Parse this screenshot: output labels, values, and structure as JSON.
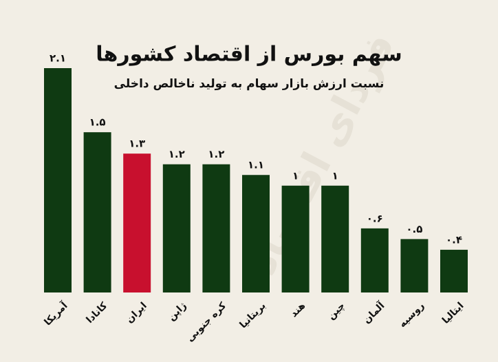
{
  "chart_data": {
    "type": "bar",
    "title": "سهم بورس از اقتصاد کشورها",
    "subtitle": "نسبت ارزش بازار سهام به تولید ناخالص داخلی",
    "watermark": "فردای اقتصاد",
    "categories": [
      "آمریکا",
      "کانادا",
      "ایران",
      "ژاپن",
      "کره جنوبی",
      "بریتانیا",
      "هند",
      "چین",
      "آلمان",
      "روسیه",
      "ایتالیا"
    ],
    "values": [
      2.1,
      1.5,
      1.3,
      1.2,
      1.2,
      1.1,
      1,
      1,
      0.6,
      0.5,
      0.4
    ],
    "value_labels": [
      "۲.۱",
      "۱.۵",
      "۱.۳",
      "۱.۲",
      "۱.۲",
      "۱.۱",
      "۱",
      "۱",
      "۰.۶",
      "۰.۵",
      "۰.۴"
    ],
    "colors": [
      "#0f3a12",
      "#0f3a12",
      "#c8102e",
      "#0f3a12",
      "#0f3a12",
      "#0f3a12",
      "#0f3a12",
      "#0f3a12",
      "#0f3a12",
      "#0f3a12",
      "#0f3a12"
    ]
  }
}
